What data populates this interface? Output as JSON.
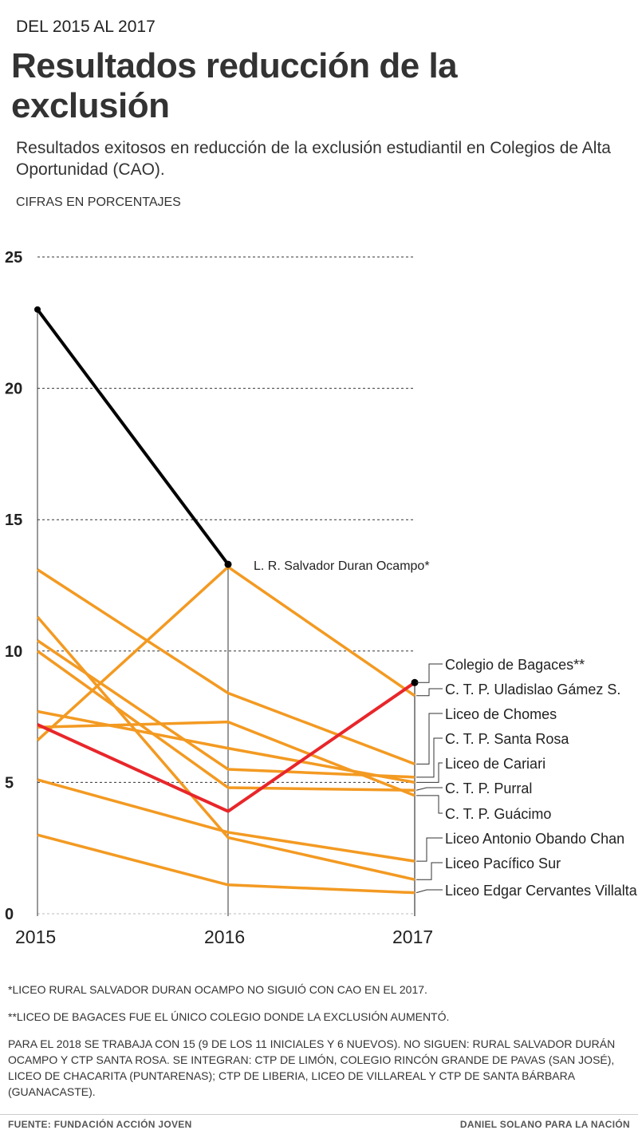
{
  "kicker": "DEL 2015 AL 2017",
  "title": "Resultados reducción de la exclusión",
  "subtitle": "Resultados exitosos en reducción de la exclusión estudiantil en Colegios de Alta Oportunidad (CAO).",
  "units": "CIFRAS EN PORCENTAJES",
  "chart_data": {
    "type": "line",
    "x": [
      "2015",
      "2016",
      "2017"
    ],
    "ylim": [
      0,
      25
    ],
    "yticks": [
      "0",
      "5",
      "10",
      "15",
      "20",
      "25"
    ],
    "grid": true,
    "colors": {
      "highlight_decline": "#000000",
      "highlight_increase": "#e8262a",
      "others": "#f39a22"
    },
    "series": [
      {
        "name": "L. R. Salvador Duran Ocampo*",
        "values": [
          23.0,
          13.3,
          null
        ],
        "color": "#000000"
      },
      {
        "name": "Colegio de Bagaces**",
        "values": [
          7.2,
          3.9,
          8.8
        ],
        "color": "#e8262a"
      },
      {
        "name": "C. T. P. Uladislao Gámez S.",
        "values": [
          6.6,
          13.2,
          8.3
        ],
        "color": "#f39a22"
      },
      {
        "name": "Liceo de Chomes",
        "values": [
          13.1,
          8.4,
          5.7
        ],
        "color": "#f39a22"
      },
      {
        "name": "C. T. P. Santa Rosa",
        "values": [
          10.4,
          5.5,
          5.2
        ],
        "color": "#f39a22"
      },
      {
        "name": "Liceo de Cariari",
        "values": [
          7.7,
          6.3,
          5.0
        ],
        "color": "#f39a22"
      },
      {
        "name": "C. T. P. Purral",
        "values": [
          10.0,
          4.8,
          4.7
        ],
        "color": "#f39a22"
      },
      {
        "name": "C. T. P. Guácimo",
        "values": [
          7.1,
          7.3,
          4.5
        ],
        "color": "#f39a22"
      },
      {
        "name": "Liceo Antonio Obando Chan",
        "values": [
          5.1,
          3.1,
          2.0
        ],
        "color": "#f39a22"
      },
      {
        "name": "Liceo Pacífico Sur",
        "values": [
          11.3,
          2.9,
          1.3
        ],
        "color": "#f39a22"
      },
      {
        "name": "Liceo Edgar Cervantes Villalta",
        "values": [
          3.0,
          1.1,
          0.8
        ],
        "color": "#f39a22"
      }
    ]
  },
  "notes": [
    "*LICEO RURAL SALVADOR DURAN OCAMPO NO SIGUIÓ CON CAO EN EL 2017.",
    "**LICEO DE BAGACES FUE EL ÚNICO COLEGIO DONDE LA EXCLUSIÓN AUMENTÓ.",
    "PARA EL 2018 SE TRABAJA CON 15 (9 DE LOS 11 INICIALES Y 6 NUEVOS). NO SIGUEN: RURAL SALVADOR DURÁN OCAMPO Y CTP SANTA ROSA. SE INTEGRAN: CTP DE LIMÓN, COLEGIO RINCÓN GRANDE DE PAVAS (SAN JOSÉ), LICEO DE CHACARITA (PUNTARENAS); CTP DE LIBERIA, LICEO DE VILLAREAL Y CTP DE SANTA BÁRBARA (GUANACASTE)."
  ],
  "source": "FUENTE: FUNDACIÓN ACCIÓN JOVEN",
  "credit": "DANIEL SOLANO PARA LA NACIÓN"
}
